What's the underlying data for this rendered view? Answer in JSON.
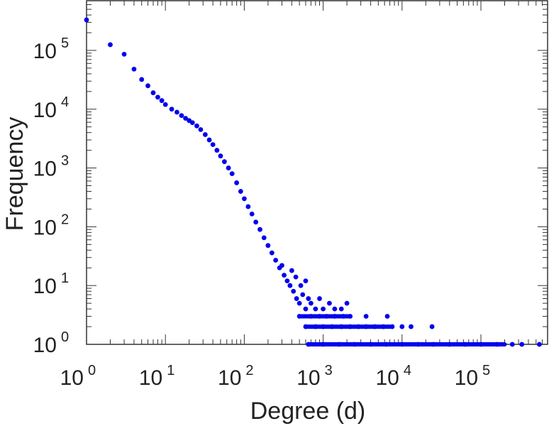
{
  "chart_data": {
    "type": "scatter",
    "title": "",
    "xlabel": "Degree (d)",
    "ylabel": "Frequency",
    "x_scale": "log",
    "y_scale": "log",
    "xlim": [
      1,
      700000
    ],
    "ylim": [
      1,
      700000
    ],
    "x_ticks": [
      {
        "base": "10",
        "exp": "0",
        "value": 1
      },
      {
        "base": "10",
        "exp": "1",
        "value": 10
      },
      {
        "base": "10",
        "exp": "2",
        "value": 100
      },
      {
        "base": "10",
        "exp": "3",
        "value": 1000
      },
      {
        "base": "10",
        "exp": "4",
        "value": 10000
      },
      {
        "base": "10",
        "exp": "5",
        "value": 100000
      }
    ],
    "y_ticks": [
      {
        "base": "10",
        "exp": "0",
        "value": 1
      },
      {
        "base": "10",
        "exp": "1",
        "value": 10
      },
      {
        "base": "10",
        "exp": "2",
        "value": 100
      },
      {
        "base": "10",
        "exp": "3",
        "value": 1000
      },
      {
        "base": "10",
        "exp": "4",
        "value": 10000
      },
      {
        "base": "10",
        "exp": "5",
        "value": 100000
      }
    ],
    "grid": false,
    "legend": "none",
    "marker_color": "#0000ee",
    "series": [
      {
        "points": [
          [
            1,
            330000
          ],
          [
            2,
            125000
          ],
          [
            3,
            86000
          ],
          [
            4,
            48000
          ],
          [
            5,
            32000
          ],
          [
            6,
            25000
          ],
          [
            7,
            19000
          ],
          [
            8,
            16000
          ],
          [
            9,
            14000
          ],
          [
            10,
            12000
          ],
          [
            12,
            10000
          ],
          [
            14,
            8900
          ],
          [
            16,
            7800
          ],
          [
            18,
            7000
          ],
          [
            20,
            6400
          ],
          [
            22,
            5900
          ],
          [
            25,
            5200
          ],
          [
            28,
            4500
          ],
          [
            32,
            3700
          ],
          [
            36,
            3000
          ],
          [
            40,
            2500
          ],
          [
            45,
            2000
          ],
          [
            50,
            1600
          ],
          [
            56,
            1280
          ],
          [
            63,
            1000
          ],
          [
            70,
            800
          ],
          [
            80,
            560
          ],
          [
            90,
            400
          ],
          [
            100,
            300
          ],
          [
            112,
            220
          ],
          [
            125,
            165
          ],
          [
            140,
            120
          ],
          [
            158,
            90
          ],
          [
            178,
            65
          ],
          [
            200,
            48
          ],
          [
            224,
            36
          ],
          [
            250,
            27
          ],
          [
            280,
            20
          ],
          [
            300,
            22
          ],
          [
            320,
            15
          ],
          [
            350,
            12
          ],
          [
            380,
            10
          ],
          [
            420,
            8
          ],
          [
            460,
            6
          ],
          [
            500,
            5
          ],
          [
            550,
            7
          ],
          [
            600,
            4
          ],
          [
            650,
            6
          ],
          [
            700,
            5
          ],
          [
            800,
            4
          ],
          [
            900,
            6
          ],
          [
            1000,
            4
          ],
          [
            1200,
            5
          ],
          [
            1400,
            4
          ],
          [
            1700,
            4
          ],
          [
            2000,
            5
          ],
          [
            400,
            18
          ],
          [
            450,
            14
          ],
          [
            520,
            10
          ],
          [
            600,
            12
          ],
          [
            500,
            3
          ],
          [
            700,
            3
          ],
          [
            900,
            3
          ],
          [
            1100,
            3
          ],
          [
            1400,
            3
          ],
          [
            1800,
            3
          ],
          [
            2200,
            3
          ],
          [
            3500,
            3
          ],
          [
            6500,
            3
          ],
          [
            600,
            2
          ],
          [
            800,
            2
          ],
          [
            1000,
            2
          ],
          [
            1300,
            2
          ],
          [
            1700,
            2
          ],
          [
            2200,
            2
          ],
          [
            2800,
            2
          ],
          [
            3500,
            2
          ],
          [
            4500,
            2
          ],
          [
            5800,
            2
          ],
          [
            7500,
            2
          ],
          [
            10000,
            2
          ],
          [
            13000,
            2
          ],
          [
            24000,
            2
          ],
          [
            650,
            1
          ],
          [
            1000,
            1
          ],
          [
            1600,
            1
          ],
          [
            2500,
            1
          ],
          [
            4000,
            1
          ],
          [
            6300,
            1
          ],
          [
            10000,
            1
          ],
          [
            16000,
            1
          ],
          [
            25000,
            1
          ],
          [
            40000,
            1
          ],
          [
            63000,
            1
          ],
          [
            100000,
            1
          ],
          [
            160000,
            1
          ],
          [
            250000,
            1
          ],
          [
            330000,
            1
          ],
          [
            550000,
            1
          ]
        ]
      }
    ],
    "bands": [
      {
        "y": 1,
        "x_from": 650,
        "x_to": 200000
      },
      {
        "y": 2,
        "x_from": 600,
        "x_to": 7000
      },
      {
        "y": 3,
        "x_from": 500,
        "x_to": 2200
      }
    ]
  }
}
